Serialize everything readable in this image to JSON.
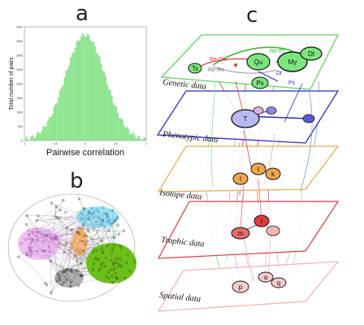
{
  "panels": {
    "a": "a",
    "b": "b",
    "c": "c"
  },
  "histogram": {
    "xlabel": "Pairwise correlation",
    "ylabel": "Total number of pairs",
    "yticks": [
      "4000",
      "3500",
      "3000",
      "2500",
      "2000",
      "1500",
      "1000",
      "500",
      "0"
    ],
    "xticks": [
      "-1",
      "-0.5",
      "0",
      "0.5",
      "1"
    ],
    "color": "#7fe07f"
  },
  "layers": [
    {
      "label": "Genetic data",
      "color": "#59d659"
    },
    {
      "label": "Phenotypic data",
      "color": "#2b2bd6"
    },
    {
      "label": "Isotope data",
      "color": "#f0a64a"
    },
    {
      "label": "Trophic data",
      "color": "#e03a3a"
    },
    {
      "label": "Spatial data",
      "color": "#f4b0b0"
    }
  ],
  "genetic_nodes": [
    "Qu",
    "My",
    "Dt",
    "Ts",
    "Ps"
  ],
  "genetic_edges": [
    "Re-Pr",
    "Re-Re",
    "Re-Qu",
    "Dt",
    "Ps"
  ],
  "pheno_nodes": [
    "T"
  ],
  "iso_nodes": [
    "I",
    "t",
    "k"
  ],
  "trophic_nodes": [
    "t",
    "m"
  ],
  "spatial_nodes": [
    "a",
    "p",
    "q"
  ]
}
